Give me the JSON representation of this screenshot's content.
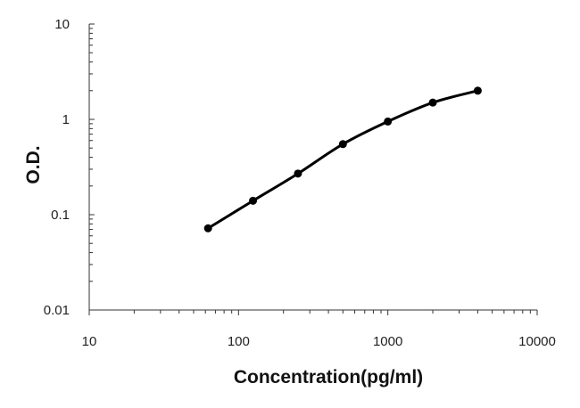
{
  "chart_data": {
    "type": "line",
    "title": "",
    "xlabel": "Concentration(pg/ml)",
    "ylabel": "O.D.",
    "xscale": "log",
    "yscale": "log",
    "xlim": [
      10,
      10000
    ],
    "ylim": [
      0.01,
      10
    ],
    "x_ticks": [
      10,
      100,
      1000,
      10000
    ],
    "y_ticks": [
      0.01,
      0.1,
      1,
      10
    ],
    "x_tick_labels": [
      "10",
      "100",
      "1000",
      "10000"
    ],
    "y_tick_labels": [
      "0.01",
      "0.1",
      "1",
      "10"
    ],
    "grid": false,
    "legend": "none",
    "series": [
      {
        "x": [
          62.5,
          125,
          250,
          500,
          1000,
          2000,
          4000
        ],
        "y": [
          0.072,
          0.14,
          0.27,
          0.55,
          0.95,
          1.5,
          2.0
        ],
        "marker": "circle",
        "color": "#000000"
      }
    ]
  }
}
